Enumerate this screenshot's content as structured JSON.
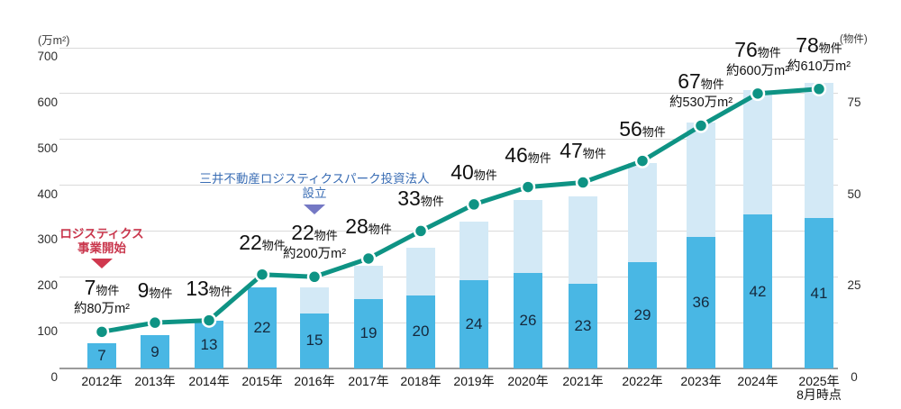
{
  "page": {
    "background": "#ffffff"
  },
  "chart_data": {
    "type": "bar",
    "subtype": "stacked-bar-with-line",
    "title": "",
    "left_axis": {
      "unit_label": "(万m²)",
      "ticks": [
        700,
        600,
        500,
        400,
        300,
        200,
        100,
        0
      ],
      "min": 0,
      "max": 700,
      "grid": true
    },
    "right_axis": {
      "unit_label": "(物件)",
      "ticks": [
        75,
        50,
        25,
        0
      ],
      "min": 0,
      "max": 87.5,
      "grid": false
    },
    "categories": [
      "2012年",
      "2013年",
      "2014年",
      "2015年",
      "2016年",
      "2017年",
      "2018年",
      "2019年",
      "2020年",
      "2021年",
      "2022年",
      "2023年",
      "2024年",
      "2025年\n8月時点"
    ],
    "series": [
      {
        "name": "dark-bar-properties",
        "type": "bar",
        "axis": "right",
        "color": "#49b7e4",
        "values": [
          7,
          9,
          13,
          22,
          15,
          19,
          20,
          24,
          26,
          23,
          29,
          36,
          42,
          41
        ]
      },
      {
        "name": "light-bar-total-properties",
        "type": "bar",
        "axis": "right",
        "color": "#d3e9f6",
        "values": [
          7,
          9,
          13,
          22,
          22,
          28,
          33,
          40,
          46,
          47,
          56,
          67,
          76,
          78
        ]
      },
      {
        "name": "total-floor-area-line",
        "type": "line",
        "axis": "left",
        "color": "#0e9384",
        "values": [
          80,
          100,
          105,
          205,
          200,
          240,
          300,
          358,
          396,
          406,
          453,
          530,
          600,
          610
        ]
      }
    ],
    "bar_value_labels": [
      "7",
      "9",
      "13",
      "22",
      "15",
      "19",
      "20",
      "24",
      "26",
      "23",
      "29",
      "36",
      "42",
      "41"
    ],
    "point_labels": [
      {
        "count": "7",
        "suffix": "物件",
        "area": "約80万m²"
      },
      {
        "count": "9",
        "suffix": "物件",
        "area": ""
      },
      {
        "count": "13",
        "suffix": "物件",
        "area": ""
      },
      {
        "count": "22",
        "suffix": "物件",
        "area": ""
      },
      {
        "count": "22",
        "suffix": "物件",
        "area": "約200万m²"
      },
      {
        "count": "28",
        "suffix": "物件",
        "area": ""
      },
      {
        "count": "33",
        "suffix": "物件",
        "area": ""
      },
      {
        "count": "40",
        "suffix": "物件",
        "area": ""
      },
      {
        "count": "46",
        "suffix": "物件",
        "area": ""
      },
      {
        "count": "47",
        "suffix": "物件",
        "area": ""
      },
      {
        "count": "56",
        "suffix": "物件",
        "area": ""
      },
      {
        "count": "67",
        "suffix": "物件",
        "area": "約530万m²"
      },
      {
        "count": "76",
        "suffix": "物件",
        "area": "約600万m²"
      },
      {
        "count": "78",
        "suffix": "物件",
        "area": "約610万m²"
      }
    ],
    "annotations": [
      {
        "name": "logistics-business-start",
        "lines": [
          "ロジスティクス",
          "事業開始"
        ],
        "text_color": "#c9374d",
        "triangle_color": "#d0384e",
        "category_index": 0
      },
      {
        "name": "reit-establishment",
        "lines": [
          "三井不動産ロジスティクスパーク投資法人",
          "設立"
        ],
        "text_color": "#3a6db4",
        "triangle_color": "#7478c4",
        "category_index": 4
      }
    ],
    "colors": {
      "dark_bar": "#49b7e4",
      "light_bar": "#d3e9f6",
      "line": "#0e9384",
      "gridline": "#dadada",
      "baseline": "#9b9b9b"
    },
    "legend": {
      "visible": false
    }
  }
}
